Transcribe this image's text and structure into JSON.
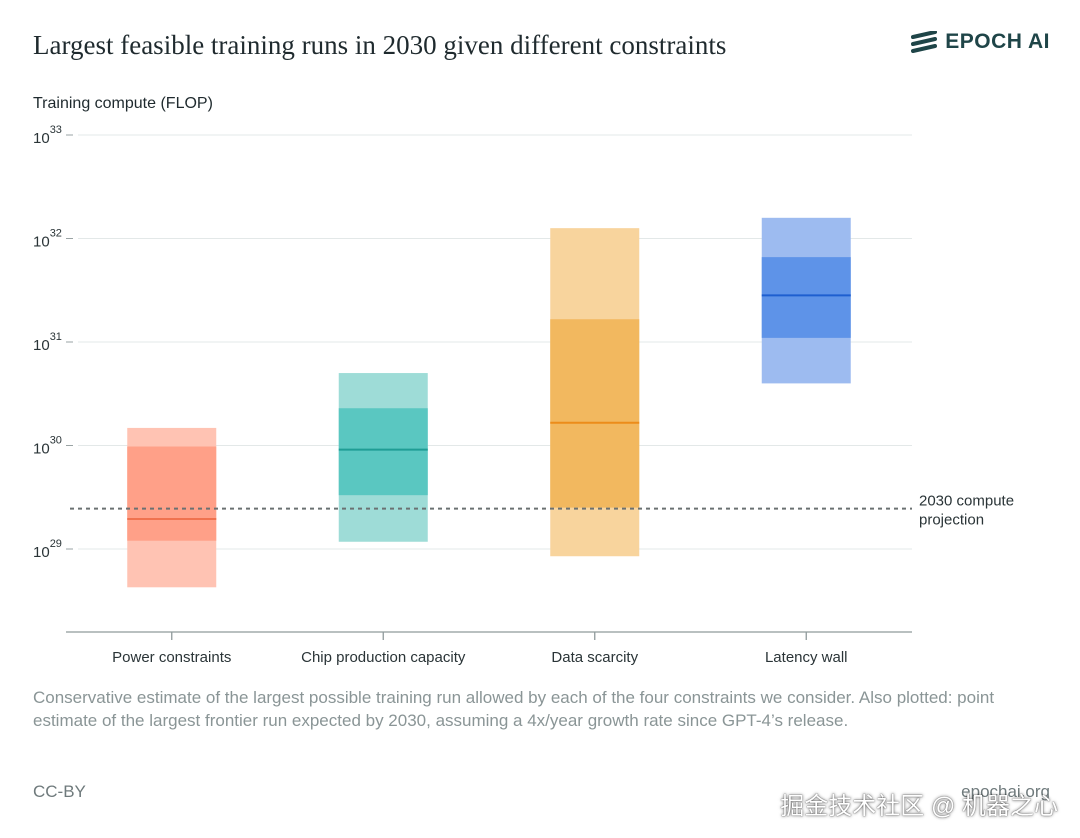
{
  "header": {
    "title": "Largest feasible training runs in 2030 given different constraints",
    "brand": "EPOCH AI"
  },
  "footer": {
    "caption": "Conservative estimate of the largest possible training run allowed by each of the four constraints we consider. Also plotted: point estimate of the largest frontier run expected by 2030, assuming a 4x/year growth rate since GPT-4’s release.",
    "license": "CC-BY",
    "site": "epochai.org",
    "watermark": "掘金技术社区 @ 机器之心"
  },
  "chart_data": {
    "type": "range-bar",
    "ylabel": "Training compute (FLOP)",
    "yscale": "log",
    "ylim_exponent": [
      28.2,
      33
    ],
    "yticks": [
      {
        "base": "10",
        "exp": "29",
        "value": 29
      },
      {
        "base": "10",
        "exp": "30",
        "value": 30
      },
      {
        "base": "10",
        "exp": "31",
        "value": 31
      },
      {
        "base": "10",
        "exp": "32",
        "value": 32
      },
      {
        "base": "10",
        "exp": "33",
        "value": 33
      }
    ],
    "categories": [
      "Power constraints",
      "Chip production capacity",
      "Data scarcity",
      "Latency wall"
    ],
    "series": [
      {
        "category": "Power constraints",
        "outer_low": 28.63,
        "inner_low": 29.08,
        "median": 29.29,
        "inner_high": 29.99,
        "outer_high": 30.17,
        "color_outer": "#ffc3b3",
        "color_inner": "#ffa088",
        "color_median": "#f0724f"
      },
      {
        "category": "Chip production capacity",
        "outer_low": 29.07,
        "inner_low": 29.52,
        "median": 29.96,
        "inner_high": 30.36,
        "outer_high": 30.7,
        "color_outer": "#9edcd7",
        "color_inner": "#5ac7c1",
        "color_median": "#1f9d95"
      },
      {
        "category": "Data scarcity",
        "outer_low": 28.93,
        "inner_low": 29.4,
        "median": 30.22,
        "inner_high": 31.22,
        "outer_high": 32.1,
        "color_outer": "#f8d49d",
        "color_inner": "#f2b85f",
        "color_median": "#ec8c1a"
      },
      {
        "category": "Latency wall",
        "outer_low": 30.6,
        "inner_low": 31.04,
        "median": 31.45,
        "inner_high": 31.82,
        "outer_high": 32.2,
        "color_outer": "#9dbbf0",
        "color_inner": "#5e93e8",
        "color_median": "#1e5fd0"
      }
    ],
    "reference_line": {
      "label_line1": "2030 compute",
      "label_line2": "projection",
      "value": 29.39,
      "style": "dashed",
      "color": "#6b7172"
    },
    "grid": true,
    "legend": "none"
  }
}
